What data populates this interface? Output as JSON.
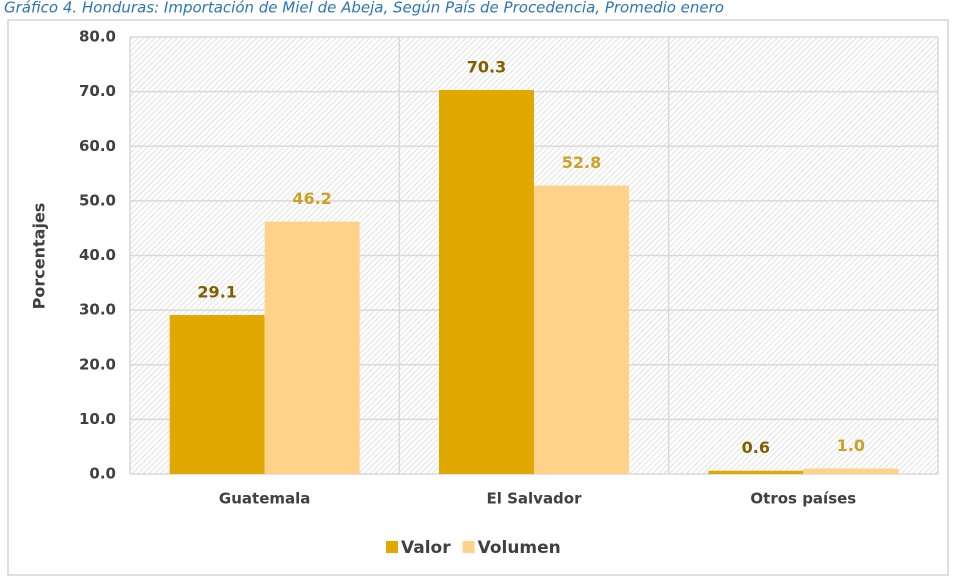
{
  "chart_data": {
    "type": "bar",
    "title": "Gráfico 4. Honduras: Importación de Miel de Abeja, Según País de Procedencia, Promedio enero",
    "y_label": "Porcentajes",
    "categories": [
      "Guatemala",
      "El Salvador",
      "Otros países"
    ],
    "series": [
      {
        "name": "Valor",
        "color": "#e0a800",
        "label_color": "#7f6000",
        "values": [
          29.1,
          70.3,
          0.6
        ],
        "value_labels": [
          "29.1",
          "70.3",
          "0.6"
        ]
      },
      {
        "name": "Volumen",
        "color": "#ffd28a",
        "label_color": "#c9a227",
        "values": [
          46.2,
          52.8,
          1
        ],
        "value_labels": [
          "46.2",
          "52.8",
          "1.0"
        ]
      }
    ],
    "ylim": [
      0,
      80
    ],
    "yticks": [
      {
        "value": 0,
        "label": "0.0"
      },
      {
        "value": 10,
        "label": "10.0"
      },
      {
        "value": 20,
        "label": "20.0"
      },
      {
        "value": 30,
        "label": "30.0"
      },
      {
        "value": 40,
        "label": "40.0"
      },
      {
        "value": 50,
        "label": "50.0"
      },
      {
        "value": 60,
        "label": "60.0"
      },
      {
        "value": 70,
        "label": "70.0"
      },
      {
        "value": 80,
        "label": "80.0"
      }
    ],
    "grid": true,
    "legend": "bottom"
  }
}
